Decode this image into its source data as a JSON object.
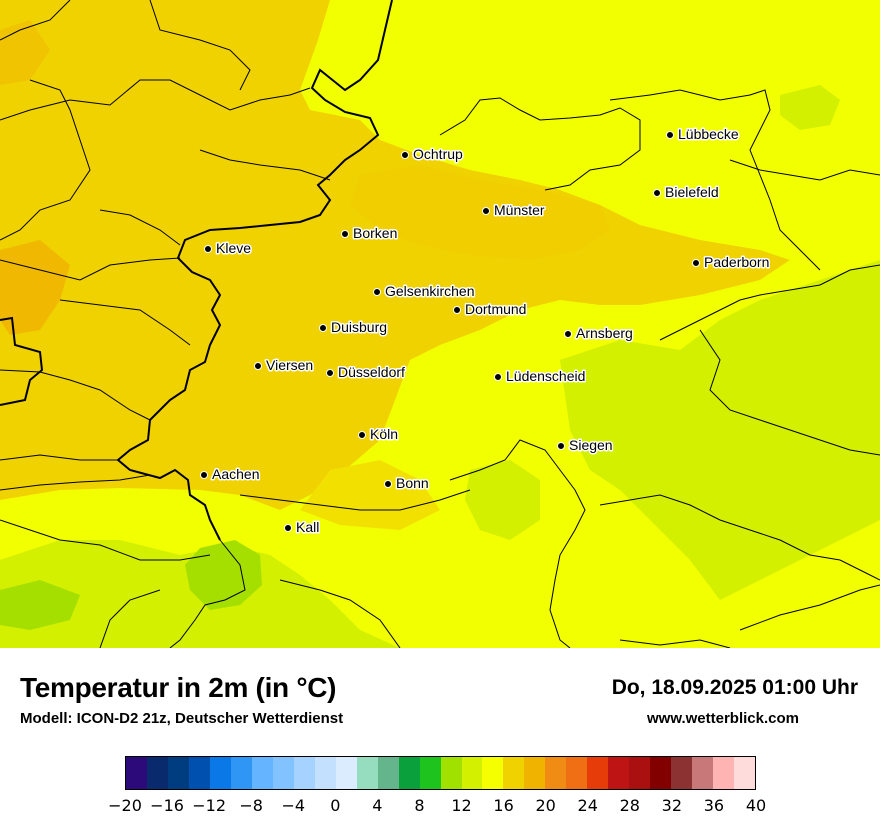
{
  "map": {
    "cities": [
      {
        "name": "Lübbecke"
      },
      {
        "name": "Ochtrup"
      },
      {
        "name": "Bielefeld"
      },
      {
        "name": "Münster"
      },
      {
        "name": "Borken"
      },
      {
        "name": "Kleve"
      },
      {
        "name": "Paderborn"
      },
      {
        "name": "Gelsenkirchen"
      },
      {
        "name": "Dortmund"
      },
      {
        "name": "Duisburg"
      },
      {
        "name": "Arnsberg"
      },
      {
        "name": "Viersen"
      },
      {
        "name": "Düsseldorf"
      },
      {
        "name": "Lüdenscheid"
      },
      {
        "name": "Köln"
      },
      {
        "name": "Siegen"
      },
      {
        "name": "Aachen"
      },
      {
        "name": "Bonn"
      },
      {
        "name": "Kall"
      }
    ],
    "colors": {
      "temp_16_18": "#f0ea00",
      "temp_18_20": "#f2d200",
      "temp_14_16": "#f2ff00",
      "temp_12_14": "#cfee00",
      "temp_10_12": "#a4df00"
    }
  },
  "footer": {
    "title": "Temperatur in 2m (in °C)",
    "model": "Modell: ICON-D2 21z, Deutscher Wetterdienst",
    "datetime": "Do, 18.09.2025 01:00 Uhr",
    "site": "www.wetterblick.com"
  },
  "legend": {
    "ticks": [
      "−20",
      "−16",
      "−12",
      "−8",
      "−4",
      "0",
      "4",
      "8",
      "12",
      "16",
      "20",
      "24",
      "28",
      "32",
      "36",
      "40"
    ],
    "colors": [
      "#2d0a7a",
      "#0a2a6e",
      "#003c80",
      "#0050b0",
      "#0a78e6",
      "#2f96f5",
      "#64b4ff",
      "#82c3ff",
      "#a5d2ff",
      "#c3e1ff",
      "#dcecff",
      "#96dcbe",
      "#64b48c",
      "#0aa03c",
      "#1ec31e",
      "#a0e100",
      "#d2f000",
      "#f5ff00",
      "#f0d200",
      "#f0b400",
      "#f08c14",
      "#f06e14",
      "#e63c0a",
      "#be1414",
      "#aa1010",
      "#820000",
      "#8c3232",
      "#c87878",
      "#ffb4b4",
      "#ffdcdc"
    ]
  }
}
